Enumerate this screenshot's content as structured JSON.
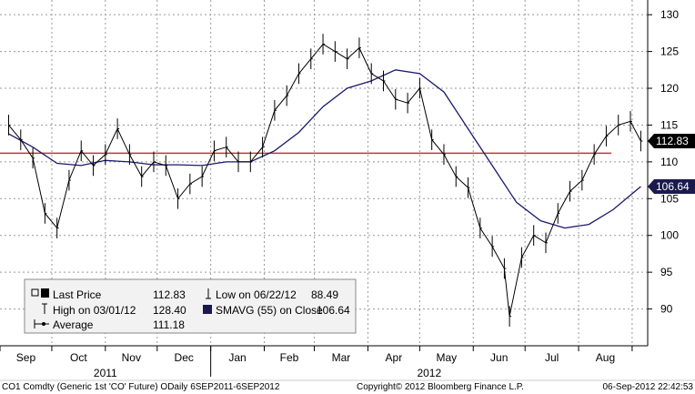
{
  "chart_data": {
    "type": "line",
    "title": "",
    "xlabel": "",
    "ylabel": "",
    "ylim": [
      85,
      132
    ],
    "y_ticks": [
      90,
      95,
      100,
      105,
      110,
      115,
      120,
      125,
      130
    ],
    "grid": true,
    "legend_placement": "bottom-left",
    "months": [
      "Sep",
      "Oct",
      "Nov",
      "Dec",
      "Jan",
      "Feb",
      "Mar",
      "Apr",
      "May",
      "Jun",
      "Jul",
      "Aug"
    ],
    "years": [
      "2011",
      "2012"
    ],
    "price_series": {
      "name": "Last Price",
      "color": "#000000",
      "x": [
        "2011-09-06",
        "2011-09-13",
        "2011-09-20",
        "2011-09-27",
        "2011-10-04",
        "2011-10-11",
        "2011-10-18",
        "2011-10-25",
        "2011-11-01",
        "2011-11-08",
        "2011-11-15",
        "2011-11-22",
        "2011-11-29",
        "2011-12-06",
        "2011-12-13",
        "2011-12-20",
        "2011-12-27",
        "2012-01-03",
        "2012-01-10",
        "2012-01-17",
        "2012-01-24",
        "2012-01-31",
        "2012-02-07",
        "2012-02-14",
        "2012-02-21",
        "2012-02-28",
        "2012-03-06",
        "2012-03-13",
        "2012-03-20",
        "2012-03-27",
        "2012-04-03",
        "2012-04-10",
        "2012-04-17",
        "2012-04-24",
        "2012-05-01",
        "2012-05-08",
        "2012-05-15",
        "2012-05-22",
        "2012-05-29",
        "2012-06-05",
        "2012-06-12",
        "2012-06-19",
        "2012-06-22",
        "2012-06-29",
        "2012-07-06",
        "2012-07-13",
        "2012-07-20",
        "2012-07-27",
        "2012-08-03",
        "2012-08-10",
        "2012-08-17",
        "2012-08-24",
        "2012-08-31",
        "2012-09-06"
      ],
      "values": [
        115.0,
        113.0,
        110.5,
        103.0,
        101.0,
        107.5,
        111.5,
        109.5,
        111.0,
        114.5,
        111.0,
        108.0,
        110.0,
        109.5,
        105.0,
        107.0,
        108.0,
        111.5,
        112.0,
        110.0,
        110.0,
        112.0,
        117.0,
        119.0,
        122.0,
        124.0,
        126.0,
        125.0,
        124.0,
        125.5,
        122.0,
        121.0,
        118.5,
        118.0,
        120.0,
        113.0,
        111.0,
        108.0,
        106.5,
        101.0,
        98.5,
        95.5,
        89.0,
        97.0,
        100.0,
        99.0,
        103.0,
        106.0,
        107.5,
        111.0,
        113.5,
        115.0,
        115.5,
        112.83
      ]
    },
    "sma_series": {
      "name": "SMAVG (55) on Close",
      "color": "#1a1a6e",
      "x": [
        "2011-09-06",
        "2011-09-20",
        "2011-10-04",
        "2011-10-18",
        "2011-11-01",
        "2011-11-15",
        "2011-11-29",
        "2011-12-13",
        "2011-12-27",
        "2012-01-10",
        "2012-01-24",
        "2012-02-07",
        "2012-02-21",
        "2012-03-06",
        "2012-03-20",
        "2012-04-03",
        "2012-04-17",
        "2012-05-01",
        "2012-05-15",
        "2012-05-29",
        "2012-06-12",
        "2012-06-26",
        "2012-07-10",
        "2012-07-24",
        "2012-08-07",
        "2012-08-21",
        "2012-09-06"
      ],
      "values": [
        113.8,
        112.0,
        109.8,
        109.5,
        110.2,
        110.0,
        109.6,
        109.6,
        109.5,
        110.0,
        110.0,
        111.5,
        114.0,
        117.5,
        120.0,
        121.0,
        122.5,
        122.0,
        119.5,
        114.5,
        109.5,
        104.5,
        102.0,
        101.0,
        101.5,
        103.5,
        106.64
      ]
    },
    "average_line": {
      "name": "Average",
      "value": 111.18,
      "color": "#cc3333"
    },
    "last_value_flag": "112.83",
    "sma_value_flag": "106.64"
  },
  "legend": {
    "rows": [
      {
        "label": "Last Price",
        "value": "112.83"
      },
      {
        "label": "High on 03/01/12",
        "value": "128.40"
      },
      {
        "label": "Average",
        "value": "111.18"
      },
      {
        "label": "Low on 06/22/12",
        "value": "88.49"
      },
      {
        "label": "SMAVG (55) on Close",
        "value": "106.64"
      }
    ]
  },
  "footer": {
    "left": "CO1 Comdty (Generic 1st 'CO' Future) ODaily 6SEP2011-6SEP2012",
    "center": "Copyright© 2012 Bloomberg Finance L.P.",
    "right": "06-Sep-2012 22:42:53"
  }
}
